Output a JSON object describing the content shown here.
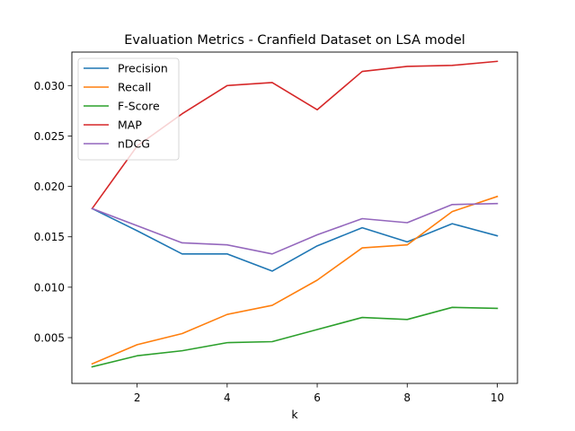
{
  "chart_data": {
    "type": "line",
    "title": "Evaluation Metrics - Cranfield Dataset on LSA model",
    "xlabel": "k",
    "ylabel": "",
    "x": [
      1,
      2,
      3,
      4,
      5,
      6,
      7,
      8,
      9,
      10
    ],
    "xlim": [
      0.55,
      10.45
    ],
    "ylim": [
      0.00046,
      0.03332
    ],
    "xticks": [
      2,
      4,
      6,
      8,
      10
    ],
    "yticks": [
      0.005,
      0.01,
      0.015,
      0.02,
      0.025,
      0.03
    ],
    "ytick_labels": [
      "0.005",
      "0.010",
      "0.015",
      "0.020",
      "0.025",
      "0.030"
    ],
    "legend_position": "top-left",
    "grid": false,
    "series": [
      {
        "name": "Precision",
        "color": "#1f77b4",
        "values": [
          0.0178,
          0.0156,
          0.0133,
          0.0133,
          0.0116,
          0.0141,
          0.0159,
          0.0145,
          0.0163,
          0.0151
        ]
      },
      {
        "name": "Recall",
        "color": "#ff7f0e",
        "values": [
          0.0024,
          0.0043,
          0.0054,
          0.0073,
          0.0082,
          0.0107,
          0.0139,
          0.0142,
          0.0175,
          0.019
        ]
      },
      {
        "name": "F-Score",
        "color": "#2ca02c",
        "values": [
          0.0021,
          0.0032,
          0.0037,
          0.0045,
          0.0046,
          0.0058,
          0.007,
          0.0068,
          0.008,
          0.0079
        ]
      },
      {
        "name": "MAP",
        "color": "#d62728",
        "values": [
          0.0178,
          0.024,
          0.0272,
          0.03,
          0.0303,
          0.0276,
          0.0314,
          0.0319,
          0.032,
          0.0324
        ]
      },
      {
        "name": "nDCG",
        "color": "#9467bd",
        "values": [
          0.0178,
          0.0161,
          0.0144,
          0.0142,
          0.0133,
          0.0152,
          0.0168,
          0.0164,
          0.0182,
          0.0183
        ]
      }
    ]
  }
}
